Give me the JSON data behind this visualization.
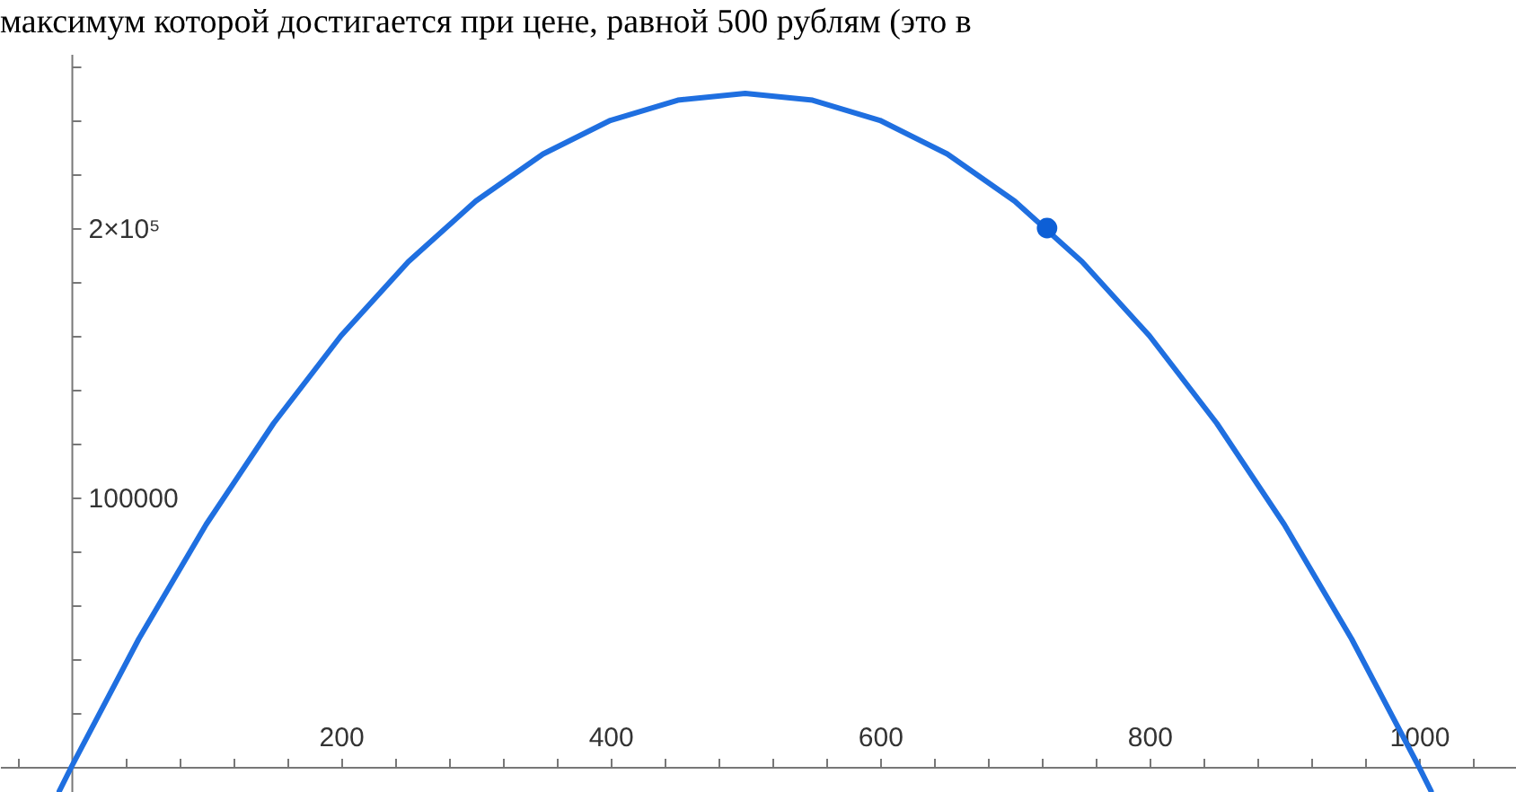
{
  "chart_data": {
    "type": "line",
    "annotations": [
      "максимум которой достигается при цене, равной 500 рублям (это в"
    ],
    "xlim": [
      -53,
      1072
    ],
    "ylim": [
      -9333,
      264667
    ],
    "xticks": [
      {
        "value": -40,
        "label": null
      },
      {
        "value": 40,
        "label": null
      },
      {
        "value": 80,
        "label": null
      },
      {
        "value": 120,
        "label": null
      },
      {
        "value": 160,
        "label": null
      },
      200,
      {
        "value": 240,
        "label": null
      },
      {
        "value": 280,
        "label": null
      },
      {
        "value": 320,
        "label": null
      },
      {
        "value": 360,
        "label": null
      },
      400,
      {
        "value": 440,
        "label": null
      },
      {
        "value": 480,
        "label": null
      },
      {
        "value": 520,
        "label": null
      },
      {
        "value": 560,
        "label": null
      },
      600,
      {
        "value": 640,
        "label": null
      },
      {
        "value": 680,
        "label": null
      },
      {
        "value": 720,
        "label": null
      },
      {
        "value": 760,
        "label": null
      },
      800,
      {
        "value": 840,
        "label": null
      },
      {
        "value": 880,
        "label": null
      },
      {
        "value": 920,
        "label": null
      },
      {
        "value": 960,
        "label": null
      },
      1000,
      {
        "value": 1040,
        "label": null
      }
    ],
    "yticks": [
      {
        "value": 20000,
        "label": null
      },
      {
        "value": 40000,
        "label": null
      },
      {
        "value": 60000,
        "label": null
      },
      {
        "value": 80000,
        "label": null
      },
      100000,
      {
        "value": 120000,
        "label": null
      },
      {
        "value": 140000,
        "label": null
      },
      {
        "value": 160000,
        "label": null
      },
      {
        "value": 180000,
        "label": null
      },
      {
        "value": 200000,
        "label": "2×10⁵"
      },
      {
        "value": 220000,
        "label": null
      },
      {
        "value": 240000,
        "label": null
      },
      {
        "value": 260000,
        "label": null
      }
    ],
    "grid": false,
    "series": [
      {
        "color": "#1f6fe0",
        "marker": "none",
        "x": [
          -9,
          0,
          50,
          100,
          150,
          200,
          250,
          300,
          350,
          400,
          450,
          500,
          550,
          600,
          650,
          700,
          750,
          800,
          850,
          900,
          950,
          1000,
          1009
        ],
        "values": [
          -9000,
          0,
          47500,
          90000,
          127500,
          160000,
          187500,
          210000,
          227500,
          240000,
          247500,
          250000,
          247500,
          240000,
          227500,
          210000,
          187500,
          160000,
          127500,
          90000,
          47500,
          0,
          -9000
        ]
      },
      {
        "type": "scatter",
        "color": "#0d5fd6",
        "marker": "circle",
        "x": [
          724
        ],
        "values": [
          200000
        ]
      }
    ]
  }
}
